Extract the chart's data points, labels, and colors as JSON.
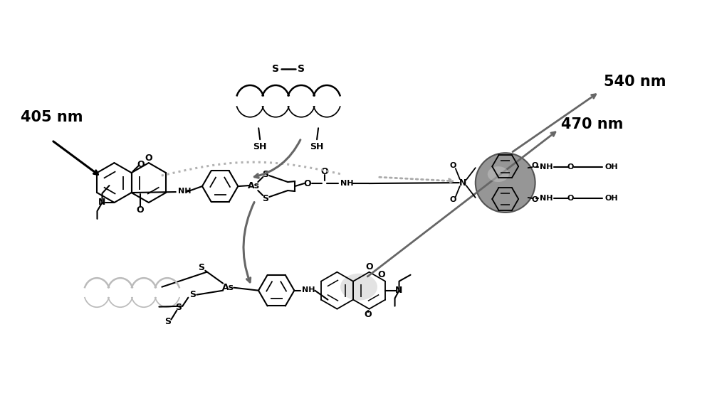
{
  "background_color": "#ffffff",
  "label_405nm": "405 nm",
  "label_540nm": "540 nm",
  "label_470nm": "470 nm",
  "arrow_color_black": "#000000",
  "arrow_color_gray": "#666666",
  "dotted_color": "#aaaaaa",
  "helix_color_dark": "#000000",
  "helix_color_light": "#bbbbbb",
  "fullerene_color": "#888888",
  "fullerene_edge": "#444444",
  "highlight_color": "#cccccc"
}
